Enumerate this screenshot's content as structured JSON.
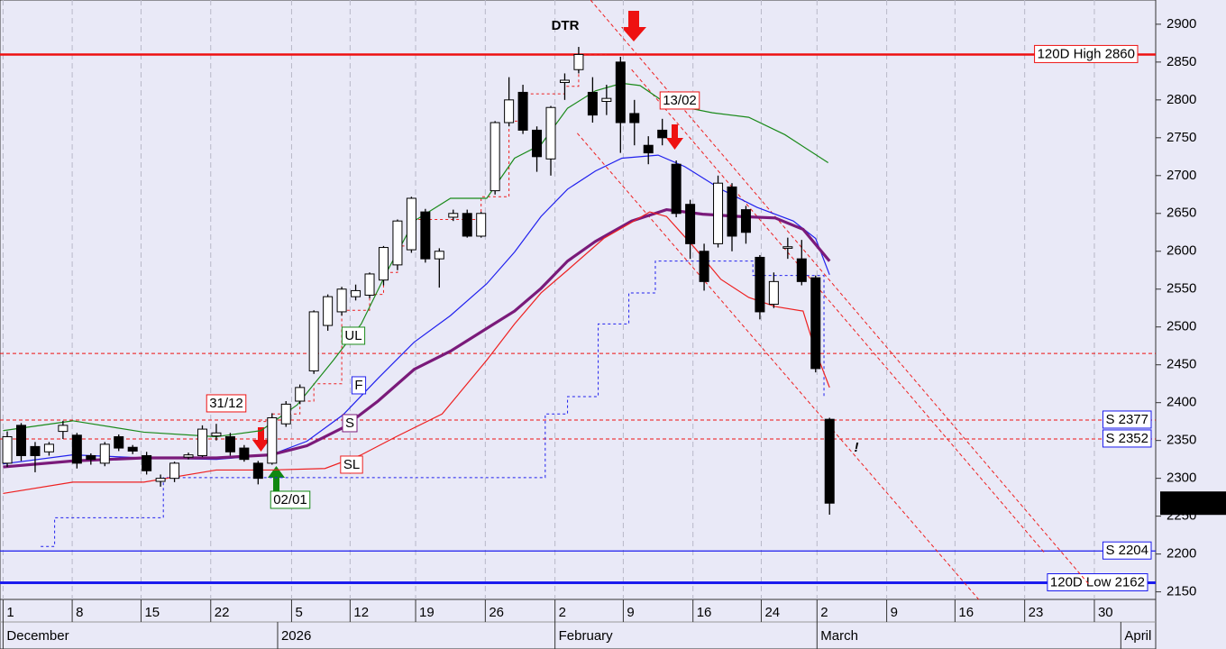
{
  "chart_data": {
    "type": "candlestick",
    "title": "DTR",
    "title_color": "#118811",
    "xlim": [
      -0.52,
      82.4
    ],
    "ylim": [
      2140,
      2932
    ],
    "yticks": [
      2150,
      2200,
      2250,
      2300,
      2350,
      2400,
      2450,
      2500,
      2550,
      2600,
      2650,
      2700,
      2750,
      2800,
      2850,
      2900
    ],
    "grid": true,
    "xticks": [
      {
        "value": -0.3,
        "label": "1"
      },
      {
        "value": 4.66,
        "label": "8"
      },
      {
        "value": 9.6,
        "label": "15"
      },
      {
        "value": 14.6,
        "label": "22"
      },
      {
        "value": 20.4,
        "label": "5"
      },
      {
        "value": 24.6,
        "label": "12"
      },
      {
        "value": 29.3,
        "label": "19"
      },
      {
        "value": 34.3,
        "label": "26"
      },
      {
        "value": 39.3,
        "label": "2"
      },
      {
        "value": 44.2,
        "label": "9"
      },
      {
        "value": 49.2,
        "label": "16"
      },
      {
        "value": 54.1,
        "label": "24"
      },
      {
        "value": 58.1,
        "label": "2"
      },
      {
        "value": 63.1,
        "label": "9"
      },
      {
        "value": 68,
        "label": "16"
      },
      {
        "value": 73,
        "label": "23"
      },
      {
        "value": 78,
        "label": "30"
      }
    ],
    "month_ticks": [
      {
        "value": -0.3,
        "label": "December"
      },
      {
        "value": 19.4,
        "label": "2026"
      },
      {
        "value": 39.3,
        "label": "February"
      },
      {
        "value": 58.1,
        "label": "March"
      },
      {
        "value": 79.9,
        "label": "April"
      }
    ],
    "candles": {
      "open": [
        2320,
        2370,
        2342,
        2335,
        2362,
        2357,
        2330,
        2320,
        2355,
        2341,
        2330,
        2296,
        2300,
        2328,
        2330,
        2356,
        2355,
        2340,
        2320,
        2320,
        2372,
        2402,
        2442,
        2502,
        2520,
        2540,
        2542,
        2562,
        2582,
        2602,
        2652,
        2590,
        2645,
        2650,
        2620,
        2680,
        2770,
        2810,
        2760,
        2722,
        2823,
        2840,
        2810,
        2798,
        2850,
        2782,
        2740,
        2760,
        2715,
        2662,
        2600,
        2610,
        2685,
        2655,
        2592,
        2530,
        2604,
        2590,
        2565,
        2378
      ],
      "high": [
        2362,
        2373,
        2348,
        2348,
        2376,
        2360,
        2333,
        2348,
        2358,
        2344,
        2335,
        2305,
        2322,
        2334,
        2370,
        2372,
        2360,
        2344,
        2323,
        2386,
        2402,
        2424,
        2522,
        2543,
        2553,
        2556,
        2572,
        2607,
        2642,
        2672,
        2656,
        2604,
        2655,
        2655,
        2652,
        2772,
        2830,
        2820,
        2765,
        2792,
        2835,
        2870,
        2830,
        2820,
        2857,
        2800,
        2752,
        2775,
        2720,
        2668,
        2610,
        2700,
        2690,
        2660,
        2595,
        2572,
        2618,
        2615,
        2568,
        2380
      ],
      "low": [
        2315,
        2323,
        2308,
        2330,
        2352,
        2313,
        2318,
        2316,
        2336,
        2332,
        2305,
        2289,
        2295,
        2325,
        2328,
        2350,
        2330,
        2322,
        2292,
        2318,
        2368,
        2398,
        2438,
        2495,
        2515,
        2535,
        2538,
        2555,
        2575,
        2598,
        2585,
        2552,
        2640,
        2618,
        2618,
        2675,
        2765,
        2755,
        2705,
        2700,
        2800,
        2835,
        2770,
        2780,
        2730,
        2740,
        2715,
        2740,
        2645,
        2590,
        2548,
        2605,
        2600,
        2610,
        2510,
        2525,
        2590,
        2555,
        2440,
        2252
      ],
      "close": [
        2355,
        2330,
        2330,
        2345,
        2370,
        2320,
        2325,
        2345,
        2340,
        2336,
        2310,
        2300,
        2320,
        2331,
        2365,
        2360,
        2335,
        2325,
        2300,
        2380,
        2398,
        2420,
        2520,
        2540,
        2550,
        2548,
        2570,
        2605,
        2640,
        2670,
        2590,
        2600,
        2650,
        2620,
        2650,
        2770,
        2800,
        2760,
        2725,
        2790,
        2826,
        2860,
        2780,
        2802,
        2770,
        2770,
        2730,
        2750,
        2650,
        2610,
        2560,
        2690,
        2620,
        2625,
        2520,
        2560,
        2606,
        2560,
        2445,
        2267.17
      ]
    },
    "series": [
      {
        "name": "UL",
        "color": "#1a8a1a",
        "width": 1.2,
        "x": [
          -0.3,
          4.7,
          9.8,
          15,
          18.2,
          20.8,
          23.4,
          25.4,
          27.3,
          29.2,
          31.8,
          34.4,
          36.4,
          38.3,
          40.2,
          42.2,
          44.1,
          45.4,
          47.3,
          50.6,
          53.2,
          55.8,
          58.9
        ],
        "values": [
          2363,
          2376,
          2361,
          2355,
          2363,
          2397,
          2456,
          2504,
          2575,
          2640,
          2670,
          2670,
          2723,
          2741,
          2789,
          2812,
          2822,
          2819,
          2795,
          2783,
          2777,
          2754,
          2717
        ]
      },
      {
        "name": "F",
        "color": "#2020ee",
        "width": 1.2,
        "x": [
          -0.3,
          4.7,
          9.8,
          15,
          18.9,
          21.5,
          24.1,
          26.6,
          29.2,
          31.8,
          34.4,
          36.4,
          38.3,
          40.2,
          42.2,
          44.1,
          46.7,
          48.6,
          51.2,
          53.8,
          56.4,
          58,
          59
        ],
        "values": [
          2319,
          2331,
          2327,
          2325,
          2331,
          2349,
          2384,
          2432,
          2480,
          2515,
          2557,
          2599,
          2646,
          2682,
          2706,
          2723,
          2727,
          2712,
          2682,
          2658,
          2640,
          2617,
          2569
        ]
      },
      {
        "name": "S",
        "color": "#7a1a7a",
        "width": 3.2,
        "x": [
          -0.3,
          4.7,
          9.8,
          15,
          18.9,
          21.5,
          24.1,
          26.6,
          29.2,
          31.8,
          34.4,
          36.4,
          38.3,
          40.2,
          42.2,
          44.8,
          47.3,
          49.9,
          52.5,
          55.1,
          57.1,
          59
        ],
        "values": [
          2315,
          2323,
          2327,
          2327,
          2331,
          2343,
          2367,
          2402,
          2444,
          2468,
          2498,
          2521,
          2551,
          2587,
          2613,
          2640,
          2655,
          2649,
          2646,
          2644,
          2629,
          2587
        ]
      },
      {
        "name": "SL",
        "color": "#ee2020",
        "width": 1.2,
        "x": [
          -0.3,
          4.7,
          9.8,
          15,
          18.9,
          22.8,
          25.4,
          27.9,
          31.2,
          34.4,
          36.4,
          38.3,
          40.2,
          42.8,
          46.1,
          47.3,
          49.3,
          51.2,
          53.2,
          55.1,
          57.1,
          58,
          59
        ],
        "values": [
          2280,
          2295,
          2295,
          2311,
          2311,
          2313,
          2331,
          2355,
          2385,
          2456,
          2504,
          2545,
          2575,
          2617,
          2652,
          2646,
          2605,
          2563,
          2539,
          2527,
          2521,
          2468,
          2420
        ]
      }
    ],
    "stops": [
      {
        "color": "#2020ee",
        "x": [
          2.4,
          3.4,
          9.5,
          11.2,
          37.2,
          38.6,
          40.2,
          42.4,
          44.6,
          46.5,
          51,
          53.5,
          58.6
        ],
        "values": [
          2210,
          2248,
          2248,
          2301,
          2301,
          2385,
          2408,
          2504,
          2545,
          2587,
          2587,
          2568,
          2408
        ]
      },
      {
        "color": "#ee2020",
        "x": [
          18,
          19,
          21,
          22,
          24,
          26,
          27,
          28,
          29,
          34,
          35,
          36,
          37,
          40,
          41,
          43
        ],
        "values": [
          2375,
          2385,
          2402,
          2425,
          2522,
          2543,
          2572,
          2607,
          2642,
          2672,
          2672,
          2772,
          2808,
          2818,
          2860,
          2860
        ]
      }
    ],
    "trendlines": [
      {
        "color": "#ee2020",
        "x": [
          41.85,
          77.7
        ],
        "values": [
          2932,
          2158
        ]
      },
      {
        "color": "#ee2020",
        "x": [
          44.8,
          74.5
        ],
        "values": [
          2840,
          2200
        ]
      },
      {
        "color": "#ee2020",
        "x": [
          40.9,
          69.7
        ],
        "values": [
          2756,
          2140
        ]
      }
    ],
    "levels": [
      {
        "value": 2860,
        "color": "#ee1111",
        "style": "solid",
        "width": 2.5,
        "label": "120D High 2860"
      },
      {
        "value": 2377,
        "color": "#ee1111",
        "style": "dashed",
        "width": 1,
        "label": "S 2377",
        "label_color": "#1a1aee"
      },
      {
        "value": 2352,
        "color": "#ee1111",
        "style": "dashed",
        "width": 1,
        "label": "S 2352",
        "label_color": "#1a1aee"
      },
      {
        "value": 2465,
        "color": "#ee1111",
        "style": "dashed",
        "width": 1
      },
      {
        "value": 2204,
        "color": "#1a1aee",
        "style": "solid",
        "width": 1.2,
        "label": "S 2204",
        "label_color": "#1a1aee"
      },
      {
        "value": 2162,
        "color": "#1a1aee",
        "style": "solid",
        "width": 3,
        "label": "120D Low 2162",
        "label_color": "#1a1aee"
      }
    ],
    "annotations": [
      {
        "text": "31/12",
        "color": "#ee1111"
      },
      {
        "text": "02/01",
        "color": "#118811"
      },
      {
        "text": "13/02",
        "color": "#ee1111"
      },
      {
        "text": "!",
        "color": "#ee1111"
      }
    ],
    "last_price": 2267.17
  }
}
